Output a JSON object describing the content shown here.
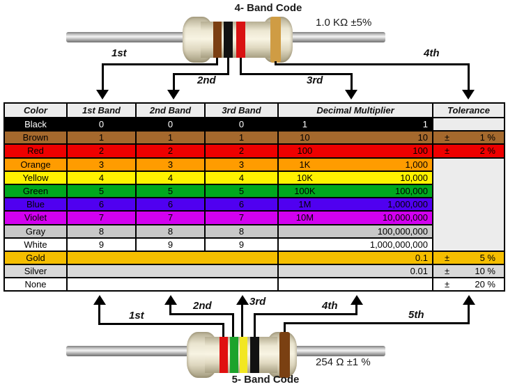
{
  "top_resistor": {
    "title": "4- Band Code",
    "value_label": "1.0 KΩ  ±5%",
    "bands": [
      {
        "name": "brown-band",
        "color": "#7b3f13"
      },
      {
        "name": "black-band",
        "color": "#121212"
      },
      {
        "name": "red-band",
        "color": "#d91212"
      },
      {
        "name": "gold-band",
        "color": "#cf9c44"
      }
    ],
    "arrow_labels": [
      "1st",
      "2nd",
      "3rd",
      "4th"
    ]
  },
  "bottom_resistor": {
    "title": "5- Band Code",
    "value_label": "254 Ω  ±1 %",
    "bands": [
      {
        "name": "red-band",
        "color": "#e01010"
      },
      {
        "name": "green-band",
        "color": "#1da32c"
      },
      {
        "name": "yellow-band",
        "color": "#f2e722"
      },
      {
        "name": "black-band",
        "color": "#121212"
      },
      {
        "name": "brown-band",
        "color": "#7a4012"
      }
    ],
    "arrow_labels": [
      "1st",
      "2nd",
      "3rd",
      "4th",
      "5th"
    ]
  },
  "table": {
    "headers": [
      "Color",
      "1st Band",
      "2nd Band",
      "3rd Band",
      "Decimal Multiplier",
      "Tolerance"
    ],
    "empty_cell_color": "#ececec",
    "pm_sign": "±",
    "rows": [
      {
        "name": "Black",
        "bg": "#000000",
        "fg": "#ffffff",
        "b1": "0",
        "b2": "0",
        "b3": "0",
        "ms": "1",
        "mf": "1",
        "tol": "empty"
      },
      {
        "name": "Brown",
        "bg": "#a5692d",
        "b1": "1",
        "b2": "1",
        "b3": "1",
        "ms": "10",
        "mf": "10",
        "tol": {
          "val": "1 %"
        }
      },
      {
        "name": "Red",
        "bg": "#ee0000",
        "b1": "2",
        "b2": "2",
        "b3": "2",
        "ms": "100",
        "mf": "100",
        "tol": {
          "val": "2 %"
        }
      },
      {
        "name": "Orange",
        "bg": "#ff9c00",
        "b1": "3",
        "b2": "3",
        "b3": "3",
        "ms": "1K",
        "mf": "1,000",
        "tol": "merged"
      },
      {
        "name": "Yellow",
        "bg": "#fff200",
        "b1": "4",
        "b2": "4",
        "b3": "4",
        "ms": "10K",
        "mf": "10,000",
        "tol": "in-merged"
      },
      {
        "name": "Green",
        "bg": "#00a81e",
        "b1": "5",
        "b2": "5",
        "b3": "5",
        "ms": "100K",
        "mf": "100,000",
        "tol": "in-merged"
      },
      {
        "name": "Blue",
        "bg": "#5000f0",
        "b1": "6",
        "b2": "6",
        "b3": "6",
        "ms": "1M",
        "mf": "1,000,000",
        "tol": "in-merged"
      },
      {
        "name": "Violet",
        "bg": "#d200f0",
        "b1": "7",
        "b2": "7",
        "b3": "7",
        "ms": "10M",
        "mf": "10,000,000",
        "tol": "in-merged"
      },
      {
        "name": "Gray",
        "bg": "#c8c8c8",
        "b1": "8",
        "b2": "8",
        "b3": "8",
        "ms": "",
        "mf": "100,000,000",
        "tol": "in-merged"
      },
      {
        "name": "White",
        "bg": "#ffffff",
        "b1": "9",
        "b2": "9",
        "b3": "9",
        "ms": "",
        "mf": "1,000,000,000",
        "tol": "in-merged"
      },
      {
        "name": "Gold",
        "bg": "#f5be00",
        "band_merged": true,
        "ms": "",
        "mf": "0.1",
        "tol": {
          "val": "5 %"
        }
      },
      {
        "name": "Silver",
        "bg": "#d8d8d8",
        "band_merged": true,
        "ms": "",
        "mf": "0.01",
        "tol": {
          "val": "10 %"
        }
      },
      {
        "name": "None",
        "bg": "#ffffff",
        "band_merged": true,
        "ms": "",
        "mf": "",
        "tol": {
          "val": "20 %"
        }
      }
    ]
  }
}
